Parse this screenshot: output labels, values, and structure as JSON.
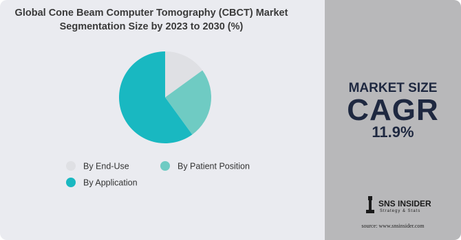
{
  "chart_data": {
    "type": "pie",
    "title": "Global Cone Beam Computer Tomography (CBCT) Market Segmentation Size by 2023 to 2030 (%)",
    "categories": [
      "By End-Use",
      "By Patient Position",
      "By Application"
    ],
    "values": [
      15,
      25,
      60
    ],
    "colors": [
      "#dfe0e4",
      "#6fcbc3",
      "#19b8c1"
    ]
  },
  "side_panel": {
    "heading": "MARKET SIZE",
    "subheading": "CAGR",
    "value": "11.9%"
  },
  "branding": {
    "name": "SNS INSIDER",
    "tagline": "Strategy & Stats",
    "source": "source: www.snsinsider.com"
  }
}
